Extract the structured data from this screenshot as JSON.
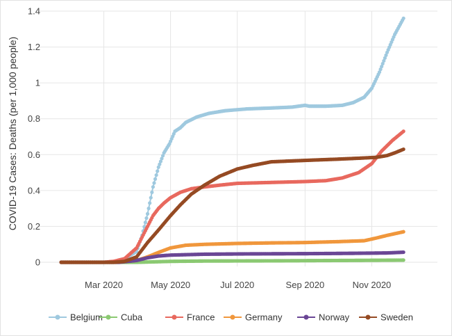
{
  "chart_data": {
    "type": "line",
    "title": "",
    "xlabel": "",
    "ylabel": "COVID-19 Cases: Deaths (per 1,000 people)",
    "x_range": [
      "2020-01-01",
      "2020-12-31"
    ],
    "x_tick_dates": [
      "2020-03-01",
      "2020-05-01",
      "2020-07-01",
      "2020-09-01",
      "2020-11-01"
    ],
    "x_tick_labels": [
      "Mar 2020",
      "May 2020",
      "Jul 2020",
      "Sep 2020",
      "Nov 2020"
    ],
    "ylim": [
      0,
      1.4
    ],
    "y_ticks": [
      0,
      0.2,
      0.4,
      0.6,
      0.8,
      1,
      1.2,
      1.4
    ],
    "y_tick_labels": [
      "0",
      "0.2",
      "0.4",
      "0.6",
      "0.8",
      "1",
      "1.2",
      "1.4"
    ],
    "grid": true,
    "legend_position": "bottom",
    "series": [
      {
        "name": "Belgium",
        "color": "#9fc9df",
        "points": [
          [
            "2020-01-22",
            0
          ],
          [
            "2020-03-10",
            0
          ],
          [
            "2020-03-20",
            0.02
          ],
          [
            "2020-03-31",
            0.06
          ],
          [
            "2020-04-05",
            0.15
          ],
          [
            "2020-04-10",
            0.27
          ],
          [
            "2020-04-15",
            0.42
          ],
          [
            "2020-04-20",
            0.53
          ],
          [
            "2020-04-25",
            0.61
          ],
          [
            "2020-04-30",
            0.66
          ],
          [
            "2020-05-05",
            0.73
          ],
          [
            "2020-05-10",
            0.75
          ],
          [
            "2020-05-15",
            0.78
          ],
          [
            "2020-05-25",
            0.81
          ],
          [
            "2020-06-05",
            0.83
          ],
          [
            "2020-06-20",
            0.845
          ],
          [
            "2020-07-10",
            0.855
          ],
          [
            "2020-08-01",
            0.86
          ],
          [
            "2020-08-20",
            0.865
          ],
          [
            "2020-09-01",
            0.875
          ],
          [
            "2020-09-05",
            0.87
          ],
          [
            "2020-09-20",
            0.87
          ],
          [
            "2020-10-05",
            0.875
          ],
          [
            "2020-10-15",
            0.89
          ],
          [
            "2020-10-25",
            0.92
          ],
          [
            "2020-11-01",
            0.97
          ],
          [
            "2020-11-08",
            1.06
          ],
          [
            "2020-11-15",
            1.17
          ],
          [
            "2020-11-22",
            1.27
          ],
          [
            "2020-11-30",
            1.36
          ]
        ]
      },
      {
        "name": "Cuba",
        "color": "#8bc972",
        "points": [
          [
            "2020-01-22",
            0
          ],
          [
            "2020-04-01",
            0
          ],
          [
            "2020-05-01",
            0.005
          ],
          [
            "2020-06-01",
            0.007
          ],
          [
            "2020-08-01",
            0.008
          ],
          [
            "2020-10-01",
            0.01
          ],
          [
            "2020-11-30",
            0.012
          ]
        ]
      },
      {
        "name": "France",
        "color": "#e8695e",
        "points": [
          [
            "2020-01-22",
            0
          ],
          [
            "2020-03-01",
            0
          ],
          [
            "2020-03-10",
            0.005
          ],
          [
            "2020-03-20",
            0.02
          ],
          [
            "2020-03-31",
            0.08
          ],
          [
            "2020-04-05",
            0.14
          ],
          [
            "2020-04-10",
            0.2
          ],
          [
            "2020-04-15",
            0.26
          ],
          [
            "2020-04-20",
            0.3
          ],
          [
            "2020-04-25",
            0.33
          ],
          [
            "2020-05-01",
            0.36
          ],
          [
            "2020-05-10",
            0.39
          ],
          [
            "2020-05-20",
            0.41
          ],
          [
            "2020-06-01",
            0.42
          ],
          [
            "2020-06-15",
            0.43
          ],
          [
            "2020-07-01",
            0.44
          ],
          [
            "2020-08-01",
            0.445
          ],
          [
            "2020-09-01",
            0.45
          ],
          [
            "2020-09-20",
            0.455
          ],
          [
            "2020-10-05",
            0.47
          ],
          [
            "2020-10-20",
            0.5
          ],
          [
            "2020-11-01",
            0.55
          ],
          [
            "2020-11-10",
            0.62
          ],
          [
            "2020-11-20",
            0.68
          ],
          [
            "2020-11-30",
            0.73
          ]
        ]
      },
      {
        "name": "Germany",
        "color": "#f0973c",
        "points": [
          [
            "2020-01-22",
            0
          ],
          [
            "2020-03-15",
            0
          ],
          [
            "2020-03-31",
            0.01
          ],
          [
            "2020-04-10",
            0.03
          ],
          [
            "2020-04-20",
            0.055
          ],
          [
            "2020-05-01",
            0.08
          ],
          [
            "2020-05-15",
            0.095
          ],
          [
            "2020-06-01",
            0.1
          ],
          [
            "2020-07-01",
            0.105
          ],
          [
            "2020-08-01",
            0.108
          ],
          [
            "2020-09-01",
            0.11
          ],
          [
            "2020-10-01",
            0.115
          ],
          [
            "2020-10-25",
            0.12
          ],
          [
            "2020-11-05",
            0.135
          ],
          [
            "2020-11-15",
            0.15
          ],
          [
            "2020-11-30",
            0.17
          ]
        ]
      },
      {
        "name": "Norway",
        "color": "#6a4695",
        "points": [
          [
            "2020-01-22",
            0
          ],
          [
            "2020-03-15",
            0
          ],
          [
            "2020-03-31",
            0.01
          ],
          [
            "2020-04-10",
            0.025
          ],
          [
            "2020-04-20",
            0.035
          ],
          [
            "2020-05-01",
            0.04
          ],
          [
            "2020-06-01",
            0.045
          ],
          [
            "2020-07-15",
            0.047
          ],
          [
            "2020-09-01",
            0.048
          ],
          [
            "2020-10-15",
            0.05
          ],
          [
            "2020-11-15",
            0.052
          ],
          [
            "2020-11-30",
            0.056
          ]
        ]
      },
      {
        "name": "Sweden",
        "color": "#954a23",
        "points": [
          [
            "2020-01-22",
            0
          ],
          [
            "2020-03-10",
            0
          ],
          [
            "2020-03-20",
            0.005
          ],
          [
            "2020-03-31",
            0.03
          ],
          [
            "2020-04-10",
            0.11
          ],
          [
            "2020-04-20",
            0.18
          ],
          [
            "2020-05-01",
            0.26
          ],
          [
            "2020-05-10",
            0.32
          ],
          [
            "2020-05-20",
            0.38
          ],
          [
            "2020-06-01",
            0.43
          ],
          [
            "2020-06-15",
            0.48
          ],
          [
            "2020-07-01",
            0.52
          ],
          [
            "2020-07-15",
            0.54
          ],
          [
            "2020-08-01",
            0.56
          ],
          [
            "2020-08-20",
            0.565
          ],
          [
            "2020-09-10",
            0.57
          ],
          [
            "2020-10-01",
            0.575
          ],
          [
            "2020-10-20",
            0.58
          ],
          [
            "2020-11-05",
            0.585
          ],
          [
            "2020-11-15",
            0.595
          ],
          [
            "2020-11-22",
            0.61
          ],
          [
            "2020-11-30",
            0.63
          ]
        ]
      }
    ]
  }
}
